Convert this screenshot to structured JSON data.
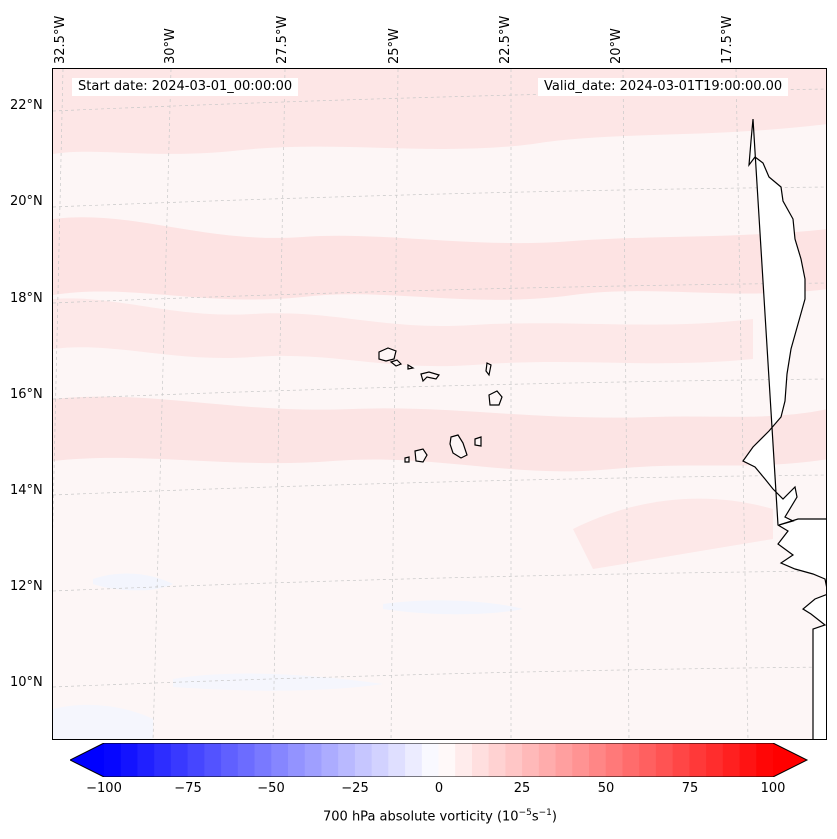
{
  "map": {
    "start_date": "Start date: 2024-03-01_00:00:00",
    "valid_date": "Valid_date: 2024-03-01T19:00:00.00",
    "lon_labels": [
      "32.5°W",
      "30°W",
      "27.5°W",
      "25°W",
      "22.5°W",
      "20°W",
      "17.5°W"
    ],
    "lat_labels": [
      "22°N",
      "20°N",
      "18°N",
      "16°N",
      "14°N",
      "12°N",
      "10°N"
    ],
    "land_color": "#ffffff",
    "coast_color": "#000000",
    "field_base_color": "#fdf6f6",
    "field_pos_color": "#fde3e3",
    "field_neg_color": "#f3f5fd"
  },
  "colorbar": {
    "ticks": [
      "−100",
      "−75",
      "−50",
      "−25",
      "0",
      "25",
      "50",
      "75",
      "100"
    ],
    "title_prefix": "700 hPa absolute vorticity (10",
    "title_exp1": "−5",
    "title_mid": "s",
    "title_exp2": "−1",
    "title_suffix": ")",
    "min": -100,
    "max": 100,
    "step": 5,
    "neg_color": "#0000ff",
    "pos_color": "#ff0000"
  }
}
